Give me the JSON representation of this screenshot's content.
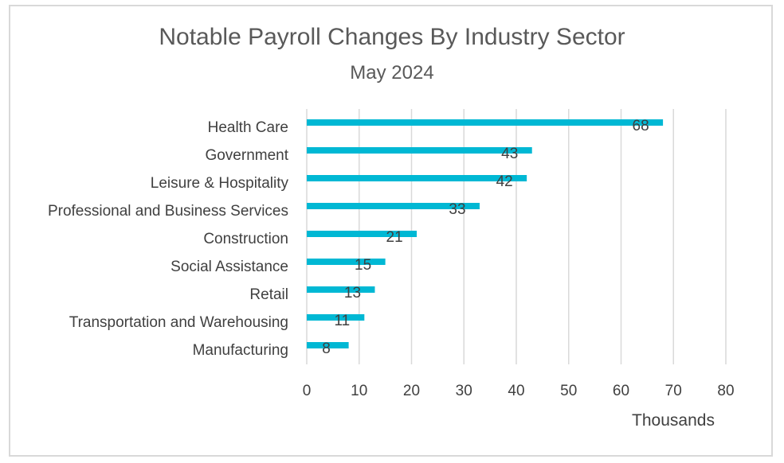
{
  "chart_data": {
    "type": "bar",
    "orientation": "horizontal",
    "title": "Notable Payroll Changes By Industry Sector",
    "subtitle": "May 2024",
    "xlabel": "Thousands",
    "ylabel": "",
    "categories": [
      "Health Care",
      "Government",
      "Leisure & Hospitality",
      "Professional and Business Services",
      "Construction",
      "Social Assistance",
      "Retail",
      "Transportation and Warehousing",
      "Manufacturing"
    ],
    "values": [
      68,
      43,
      42,
      33,
      21,
      15,
      13,
      11,
      8
    ],
    "data_labels": [
      "68",
      "43",
      "42",
      "33",
      "21",
      "15",
      "13",
      "11",
      "8"
    ],
    "xlim": [
      0,
      80
    ],
    "xticks": [
      0,
      10,
      20,
      30,
      40,
      50,
      60,
      70,
      80
    ],
    "xtick_labels": [
      "0",
      "10",
      "20",
      "30",
      "40",
      "50",
      "60",
      "70",
      "80"
    ],
    "grid": true,
    "legend": "none",
    "bar_color": "#00b8d4",
    "grid_color": "#d9d9d9",
    "text_color": "#404040"
  }
}
